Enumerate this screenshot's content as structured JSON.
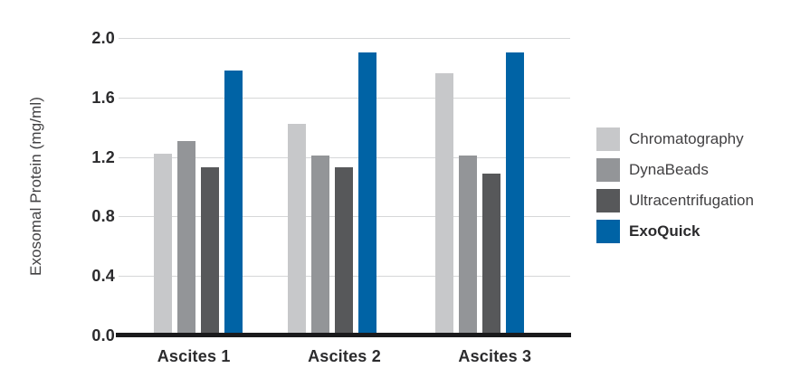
{
  "chart_data": {
    "type": "bar",
    "title": "",
    "xlabel": "",
    "ylabel": "Exosomal Protein (mg/ml)",
    "ylim": [
      0,
      2.0
    ],
    "ytick_labels": [
      "2.0",
      "1.6",
      "1.2",
      "0.8",
      "0.4",
      "0.0"
    ],
    "grid": true,
    "legend_position": "right",
    "categories": [
      "Ascites 1",
      "Ascites 2",
      "Ascites 3"
    ],
    "series": [
      {
        "name": "Chromatography",
        "color": "#c7c8ca",
        "emphasis": false,
        "values": [
          1.22,
          1.42,
          1.76
        ]
      },
      {
        "name": "DynaBeads",
        "color": "#939598",
        "emphasis": false,
        "values": [
          1.31,
          1.21,
          1.21
        ]
      },
      {
        "name": "Ultracentrifugation",
        "color": "#57585a",
        "emphasis": false,
        "values": [
          1.13,
          1.13,
          1.09
        ]
      },
      {
        "name": "ExoQuick",
        "color": "#0063a5",
        "emphasis": true,
        "values": [
          1.78,
          1.9,
          1.9
        ]
      }
    ]
  },
  "colors": {
    "gridline": "#d6d7d8",
    "axis_line": "#1a1a1c",
    "tick_text": "#2b2b2d",
    "label_text": "#414042",
    "background": "#ffffff"
  }
}
